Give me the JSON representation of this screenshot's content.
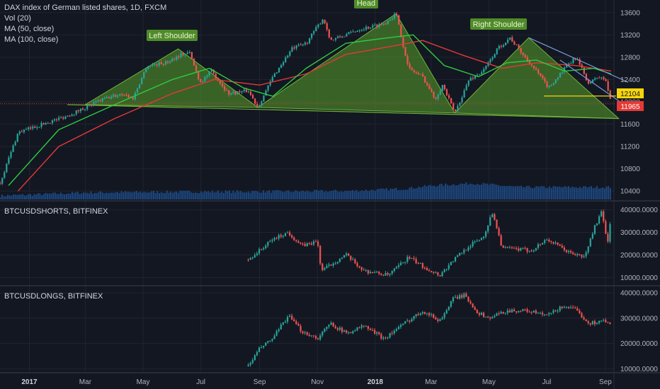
{
  "colors": {
    "background": "#131722",
    "grid": "#1f2430",
    "up": "#26a69a",
    "down": "#ef5350",
    "ma50": "#2ecc40",
    "ma100": "#e53935",
    "volume": "#1f4e8c",
    "pattern_fill": "#5aa02c",
    "neckline": "#6fb33a",
    "target_line": "#f5d50a",
    "channel": "#7b9ad8",
    "price_tag_last": "#e53935",
    "price_tag_target": "#f5d50a"
  },
  "legend": {
    "title": "DAX index of German listed shares, 1D, FXCM",
    "vol": "Vol (20)",
    "ma50": "MA (50, close)",
    "ma100": "MA (100, close)"
  },
  "pane_titles": {
    "shorts": "BTCUSDSHORTS, BITFINEX",
    "longs": "BTCUSDLONGS, BITFINEX"
  },
  "annotations": {
    "left_shoulder": "Left Shoulder",
    "head": "Head",
    "right_shoulder": "Right Shoulder"
  },
  "price_tags": {
    "target": "12104",
    "last": "11965"
  },
  "x_axis_labels": [
    {
      "label": "2017",
      "bold": true
    },
    {
      "label": "Mar",
      "bold": false
    },
    {
      "label": "May",
      "bold": false
    },
    {
      "label": "Jul",
      "bold": false
    },
    {
      "label": "Sep",
      "bold": false
    },
    {
      "label": "Nov",
      "bold": false
    },
    {
      "label": "2018",
      "bold": true
    },
    {
      "label": "Mar",
      "bold": false
    },
    {
      "label": "May",
      "bold": false
    },
    {
      "label": "Jul",
      "bold": false
    },
    {
      "label": "Sep",
      "bold": false
    }
  ],
  "chart_data": [
    {
      "type": "candlestick",
      "title": "DAX index of German listed shares, 1D, FXCM",
      "x_range": [
        "2016-12-01",
        "2018-09-10"
      ],
      "ylim": [
        10250,
        13800
      ],
      "y_ticks": [
        "13600",
        "13200",
        "12800",
        "12400",
        "12000",
        "11600",
        "11200",
        "10800",
        "10400"
      ],
      "series_path": [
        [
          "2016-12-01",
          10550
        ],
        [
          "2016-12-20",
          11450
        ],
        [
          "2017-01-15",
          11600
        ],
        [
          "2017-02-10",
          11750
        ],
        [
          "2017-03-01",
          11900
        ],
        [
          "2017-03-20",
          12050
        ],
        [
          "2017-04-10",
          12150
        ],
        [
          "2017-04-20",
          12050
        ],
        [
          "2017-05-05",
          12650
        ],
        [
          "2017-05-25",
          12700
        ],
        [
          "2017-06-10",
          12850
        ],
        [
          "2017-06-19",
          12880
        ],
        [
          "2017-06-30",
          12350
        ],
        [
          "2017-07-12",
          12550
        ],
        [
          "2017-07-30",
          12150
        ],
        [
          "2017-08-20",
          12200
        ],
        [
          "2017-08-30",
          11900
        ],
        [
          "2017-09-15",
          12450
        ],
        [
          "2017-10-05",
          12950
        ],
        [
          "2017-10-20",
          13050
        ],
        [
          "2017-11-07",
          13500
        ],
        [
          "2017-11-15",
          13100
        ],
        [
          "2017-12-01",
          13200
        ],
        [
          "2017-12-15",
          13300
        ],
        [
          "2018-01-10",
          13400
        ],
        [
          "2018-01-23",
          13580
        ],
        [
          "2018-02-05",
          12600
        ],
        [
          "2018-02-20",
          12450
        ],
        [
          "2018-03-05",
          12050
        ],
        [
          "2018-03-13",
          12300
        ],
        [
          "2018-03-26",
          11800
        ],
        [
          "2018-04-10",
          12400
        ],
        [
          "2018-04-25",
          12550
        ],
        [
          "2018-05-10",
          12950
        ],
        [
          "2018-05-23",
          13150
        ],
        [
          "2018-06-08",
          12800
        ],
        [
          "2018-06-20",
          12550
        ],
        [
          "2018-07-03",
          12250
        ],
        [
          "2018-07-20",
          12600
        ],
        [
          "2018-08-01",
          12800
        ],
        [
          "2018-08-15",
          12300
        ],
        [
          "2018-08-22",
          12450
        ],
        [
          "2018-09-01",
          12400
        ],
        [
          "2018-09-07",
          11965
        ]
      ],
      "ma50_path": [
        [
          "2016-12-10",
          10500
        ],
        [
          "2017-02-01",
          11500
        ],
        [
          "2017-04-01",
          11950
        ],
        [
          "2017-06-01",
          12400
        ],
        [
          "2017-07-10",
          12600
        ],
        [
          "2017-08-15",
          12250
        ],
        [
          "2017-09-15",
          12100
        ],
        [
          "2017-10-20",
          12600
        ],
        [
          "2017-12-01",
          13050
        ],
        [
          "2018-01-15",
          13150
        ],
        [
          "2018-02-10",
          13200
        ],
        [
          "2018-03-15",
          12650
        ],
        [
          "2018-04-20",
          12450
        ],
        [
          "2018-05-20",
          12700
        ],
        [
          "2018-06-20",
          12750
        ],
        [
          "2018-07-20",
          12550
        ],
        [
          "2018-08-20",
          12600
        ],
        [
          "2018-09-07",
          12500
        ]
      ],
      "ma100_path": [
        [
          "2016-12-20",
          10400
        ],
        [
          "2017-02-01",
          11200
        ],
        [
          "2017-04-01",
          11700
        ],
        [
          "2017-06-01",
          12150
        ],
        [
          "2017-07-15",
          12400
        ],
        [
          "2017-09-01",
          12300
        ],
        [
          "2017-10-20",
          12500
        ],
        [
          "2017-12-01",
          12850
        ],
        [
          "2018-01-20",
          13000
        ],
        [
          "2018-02-20",
          13100
        ],
        [
          "2018-04-01",
          12850
        ],
        [
          "2018-05-15",
          12600
        ],
        [
          "2018-06-20",
          12700
        ],
        [
          "2018-08-01",
          12650
        ],
        [
          "2018-09-07",
          12550
        ]
      ],
      "volume_path": [
        [
          "2016-12-01",
          0.15
        ],
        [
          "2017-03-01",
          0.35
        ],
        [
          "2017-06-01",
          0.4
        ],
        [
          "2017-09-01",
          0.42
        ],
        [
          "2017-12-01",
          0.45
        ],
        [
          "2018-02-01",
          0.6
        ],
        [
          "2018-03-01",
          0.8
        ],
        [
          "2018-04-15",
          0.95
        ],
        [
          "2018-06-01",
          0.7
        ],
        [
          "2018-09-07",
          0.7
        ]
      ],
      "pattern": {
        "left_shoulder": [
          [
            "2017-03-01",
            11950
          ],
          [
            "2017-06-07",
            12950
          ],
          [
            "2017-08-30",
            11900
          ]
        ],
        "head": [
          [
            "2017-08-30",
            11900
          ],
          [
            "2018-01-23",
            13580
          ],
          [
            "2018-03-26",
            11800
          ]
        ],
        "right_shoulder": [
          [
            "2018-03-26",
            11800
          ],
          [
            "2018-06-12",
            13150
          ],
          [
            "2018-09-15",
            11700
          ]
        ],
        "neckline": [
          [
            "2017-02-10",
            11950
          ],
          [
            "2018-09-15",
            11700
          ]
        ],
        "target_line": [
          [
            "2018-06-28",
            12104
          ],
          [
            "2018-09-10",
            12104
          ]
        ],
        "channel": [
          [
            [
              "2018-06-12",
              13150
            ],
            [
              "2018-09-25",
              12350
            ]
          ],
          [
            [
              "2018-07-15",
              12750
            ],
            [
              "2018-09-25",
              11900
            ]
          ]
        ]
      }
    },
    {
      "type": "candlestick",
      "title": "BTCUSDSHORTS, BITFINEX",
      "x_range": [
        "2016-12-01",
        "2018-09-10"
      ],
      "ylim": [
        7000,
        43000
      ],
      "y_ticks": [
        "40000.0000",
        "30000.0000",
        "20000.0000",
        "10000.0000"
      ],
      "series_path": [
        [
          "2017-08-20",
          18000
        ],
        [
          "2017-09-01",
          22000
        ],
        [
          "2017-09-15",
          27000
        ],
        [
          "2017-10-01",
          30000
        ],
        [
          "2017-10-15",
          24000
        ],
        [
          "2017-11-01",
          26000
        ],
        [
          "2017-11-05",
          13000
        ],
        [
          "2017-12-01",
          20000
        ],
        [
          "2017-12-20",
          13000
        ],
        [
          "2018-01-15",
          11000
        ],
        [
          "2018-02-05",
          19000
        ],
        [
          "2018-02-20",
          15000
        ],
        [
          "2018-03-10",
          11000
        ],
        [
          "2018-03-25",
          18000
        ],
        [
          "2018-04-10",
          24000
        ],
        [
          "2018-04-25",
          28000
        ],
        [
          "2018-05-05",
          39000
        ],
        [
          "2018-05-15",
          23000
        ],
        [
          "2018-06-15",
          22000
        ],
        [
          "2018-07-01",
          27000
        ],
        [
          "2018-07-25",
          21000
        ],
        [
          "2018-08-10",
          19000
        ],
        [
          "2018-08-20",
          32000
        ],
        [
          "2018-08-28",
          39000
        ],
        [
          "2018-09-03",
          25000
        ],
        [
          "2018-09-07",
          38000
        ]
      ]
    },
    {
      "type": "candlestick",
      "title": "BTCUSDLONGS, BITFINEX",
      "x_range": [
        "2016-12-01",
        "2018-09-10"
      ],
      "ylim": [
        9000,
        42000
      ],
      "y_ticks": [
        "40000.0000",
        "30000.0000",
        "20000.0000",
        "10000.0000"
      ],
      "series_path": [
        [
          "2017-08-20",
          11000
        ],
        [
          "2017-09-01",
          18000
        ],
        [
          "2017-09-15",
          22000
        ],
        [
          "2017-10-01",
          31000
        ],
        [
          "2017-10-15",
          25000
        ],
        [
          "2017-11-01",
          22000
        ],
        [
          "2017-11-15",
          28000
        ],
        [
          "2017-12-01",
          24000
        ],
        [
          "2017-12-20",
          27000
        ],
        [
          "2018-01-10",
          22000
        ],
        [
          "2018-02-01",
          28000
        ],
        [
          "2018-02-20",
          33000
        ],
        [
          "2018-03-10",
          29000
        ],
        [
          "2018-03-25",
          38000
        ],
        [
          "2018-04-05",
          39000
        ],
        [
          "2018-04-20",
          32000
        ],
        [
          "2018-05-01",
          30000
        ],
        [
          "2018-05-20",
          33000
        ],
        [
          "2018-06-10",
          33000
        ],
        [
          "2018-07-01",
          31000
        ],
        [
          "2018-07-20",
          35000
        ],
        [
          "2018-08-01",
          33000
        ],
        [
          "2018-08-15",
          28000
        ],
        [
          "2018-08-30",
          29000
        ],
        [
          "2018-09-07",
          27000
        ]
      ]
    }
  ]
}
